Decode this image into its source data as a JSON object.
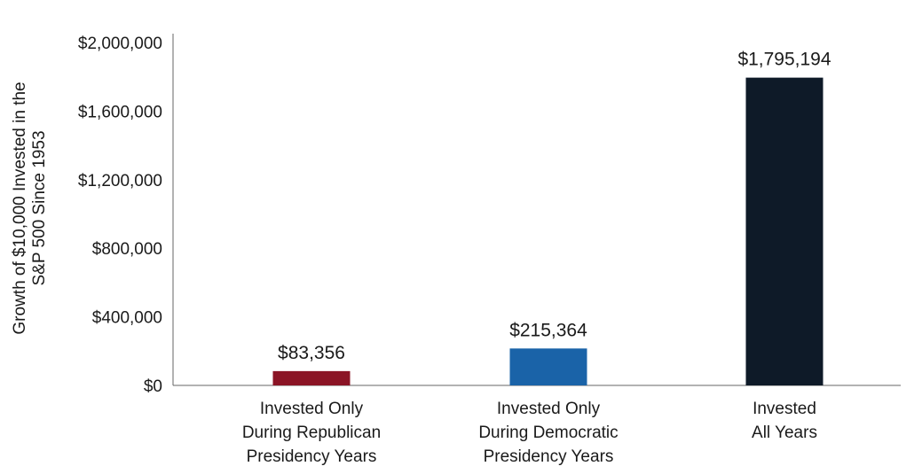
{
  "chart_data": {
    "type": "bar",
    "title": "",
    "ylabel": [
      "Growth of $10,000 Invested in the",
      "S&P 500 Since 1953"
    ],
    "xlabel": "",
    "ylim": [
      0,
      2000000
    ],
    "yticks": [
      0,
      400000,
      800000,
      1200000,
      1600000,
      2000000
    ],
    "ytick_labels": [
      "$0",
      "$400,000",
      "$800,000",
      "$1,200,000",
      "$1,600,000",
      "$2,000,000"
    ],
    "grid": false,
    "legend": "none",
    "categories": [
      [
        "Invested Only",
        "During Republican",
        "Presidency Years"
      ],
      [
        "Invested Only",
        "During Democratic",
        "Presidency Years"
      ],
      [
        "Invested",
        "All Years"
      ]
    ],
    "values": [
      83356,
      215364,
      1795194
    ],
    "data_labels": [
      "$83,356",
      "$215,364",
      "$1,795,194"
    ],
    "colors": [
      "#8b1425",
      "#1a63a8",
      "#0e1a28"
    ]
  }
}
